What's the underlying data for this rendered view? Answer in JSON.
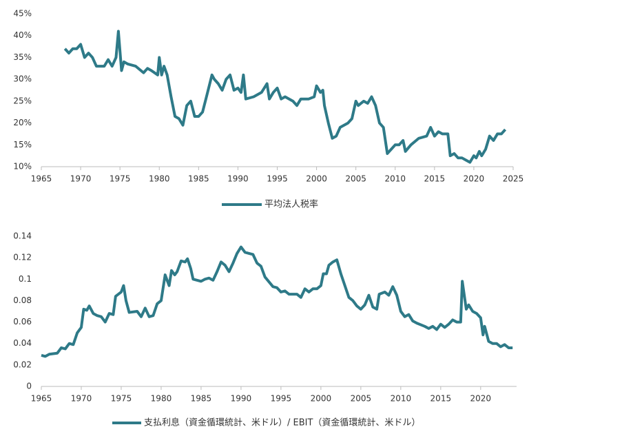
{
  "chart_data": [
    {
      "type": "line",
      "xlim": [
        1965,
        2025
      ],
      "xticks": [
        1965,
        1970,
        1975,
        1980,
        1985,
        1990,
        1995,
        2000,
        2005,
        2010,
        2015,
        2020,
        2025
      ],
      "ylim": [
        10,
        45
      ],
      "yticks": [
        {
          "value": 10,
          "label": "10%"
        },
        {
          "value": 15,
          "label": "15%"
        },
        {
          "value": 20,
          "label": "20%"
        },
        {
          "value": 25,
          "label": "25%"
        },
        {
          "value": 30,
          "label": "30%"
        },
        {
          "value": 35,
          "label": "35%"
        },
        {
          "value": 40,
          "label": "40%"
        },
        {
          "value": 45,
          "label": "45%"
        }
      ],
      "x": [
        1968,
        1968.5,
        1969,
        1969.5,
        1970,
        1970.5,
        1971,
        1971.5,
        1972,
        1973,
        1973.5,
        1974,
        1974.5,
        1974.8,
        1975.2,
        1975.5,
        1976,
        1977,
        1978,
        1978.5,
        1979,
        1979.8,
        1980,
        1980.3,
        1980.6,
        1981,
        1981.5,
        1982,
        1982.5,
        1983,
        1983.5,
        1984,
        1984.5,
        1985,
        1985.5,
        1986,
        1986.7,
        1987,
        1987.5,
        1988,
        1988.5,
        1989,
        1989.5,
        1990,
        1990.4,
        1990.7,
        1991,
        1992,
        1993,
        1993.7,
        1994,
        1994.5,
        1995,
        1995.5,
        1996,
        1997,
        1997.5,
        1998,
        1999,
        1999.7,
        2000,
        2000.5,
        2000.8,
        2001,
        2001.5,
        2002,
        2002.5,
        2003,
        2003.5,
        2004,
        2004.5,
        2005,
        2005.3,
        2006,
        2006.5,
        2007,
        2007.5,
        2008,
        2008.5,
        2009,
        2009.5,
        2010,
        2010.5,
        2011,
        2011.3,
        2012,
        2013,
        2014,
        2014.5,
        2015,
        2015.5,
        2016,
        2016.7,
        2017,
        2017.5,
        2018,
        2018.5,
        2019,
        2019.5,
        2020,
        2020.3,
        2020.7,
        2021,
        2021.5,
        2022,
        2022.5,
        2023,
        2023.5,
        2024
      ],
      "series": [
        {
          "name": "平均法人税率",
          "color": "#2e7a88",
          "values": [
            37,
            36,
            37,
            37,
            38,
            35,
            36,
            35,
            33,
            33,
            34.5,
            33,
            35,
            41,
            32,
            34,
            33.5,
            33,
            31.5,
            32.5,
            32,
            31,
            35,
            31,
            33,
            31,
            26,
            21.5,
            21,
            19.5,
            24,
            25,
            21.5,
            21.5,
            22.5,
            26,
            31,
            30,
            29,
            27.5,
            30,
            31,
            27.5,
            28,
            27,
            31,
            25.5,
            26,
            27,
            29,
            25.5,
            27,
            28,
            25.5,
            26,
            25,
            24,
            25.5,
            25.5,
            26,
            28.5,
            27,
            27.5,
            24,
            20,
            16.5,
            17,
            19,
            19.5,
            20,
            21,
            25,
            24,
            25,
            24.5,
            26,
            24,
            20,
            19,
            13,
            14,
            15,
            15,
            16,
            13.5,
            15,
            16.5,
            17,
            19,
            17,
            18,
            17.5,
            17.5,
            12.5,
            13,
            12,
            12,
            11.5,
            11,
            12.5,
            12,
            13.5,
            12.5,
            14,
            17,
            16,
            17.5,
            17.5,
            18.5
          ]
        }
      ]
    },
    {
      "type": "line",
      "xlim": [
        1965,
        2024.5
      ],
      "xticks": [
        1965,
        1970,
        1975,
        1980,
        1985,
        1990,
        1995,
        2000,
        2005,
        2010,
        2015,
        2020
      ],
      "ylim": [
        0,
        0.14
      ],
      "yticks": [
        0,
        0.02,
        0.04,
        0.06,
        0.08,
        0.1,
        0.12,
        0.14
      ],
      "x": [
        1965,
        1965.5,
        1966,
        1967,
        1967.5,
        1968,
        1968.5,
        1969,
        1969.5,
        1970,
        1970.3,
        1970.7,
        1971,
        1971.5,
        1972,
        1972.5,
        1973,
        1973.5,
        1974,
        1974.3,
        1975,
        1975.3,
        1975.6,
        1976,
        1977,
        1977.5,
        1978,
        1978.5,
        1979,
        1979.5,
        1980,
        1980.5,
        1981,
        1981.3,
        1981.7,
        1982,
        1982.5,
        1983,
        1983.3,
        1983.7,
        1984,
        1985,
        1985.5,
        1986,
        1986.5,
        1987,
        1987.5,
        1988,
        1988.5,
        1989,
        1989.5,
        1990,
        1990.5,
        1991,
        1991.5,
        1992,
        1992.5,
        1993,
        1994,
        1994.5,
        1995,
        1995.5,
        1996,
        1997,
        1997.5,
        1998,
        1998.5,
        1999,
        1999.5,
        2000,
        2000.3,
        2000.7,
        2001,
        2001.5,
        2002,
        2002.5,
        2003,
        2003.5,
        2004,
        2004.5,
        2005,
        2005.5,
        2006,
        2006.5,
        2007,
        2007.3,
        2008,
        2008.5,
        2009,
        2009.5,
        2010,
        2010.5,
        2011,
        2011.5,
        2012,
        2013,
        2013.5,
        2014,
        2014.5,
        2015,
        2015.5,
        2016,
        2016.5,
        2017,
        2017.5,
        2017.7,
        2018.2,
        2018.5,
        2019,
        2019.5,
        2020,
        2020.3,
        2020.5,
        2021,
        2021.5,
        2022,
        2022.5,
        2023,
        2023.5,
        2024
      ],
      "series": [
        {
          "name": "支払利息（資金循環統計、米ドル）/ EBIT（資金循環統計、米ドル）",
          "color": "#2e7a88",
          "values": [
            0.029,
            0.028,
            0.03,
            0.031,
            0.036,
            0.035,
            0.04,
            0.039,
            0.05,
            0.055,
            0.072,
            0.071,
            0.075,
            0.068,
            0.066,
            0.065,
            0.06,
            0.068,
            0.067,
            0.084,
            0.088,
            0.094,
            0.08,
            0.069,
            0.07,
            0.065,
            0.073,
            0.065,
            0.066,
            0.077,
            0.08,
            0.104,
            0.094,
            0.108,
            0.104,
            0.107,
            0.117,
            0.116,
            0.119,
            0.11,
            0.1,
            0.098,
            0.1,
            0.101,
            0.099,
            0.107,
            0.116,
            0.113,
            0.107,
            0.115,
            0.124,
            0.13,
            0.125,
            0.124,
            0.123,
            0.115,
            0.112,
            0.102,
            0.093,
            0.092,
            0.088,
            0.089,
            0.086,
            0.086,
            0.083,
            0.091,
            0.088,
            0.091,
            0.091,
            0.094,
            0.105,
            0.105,
            0.113,
            0.116,
            0.118,
            0.105,
            0.094,
            0.083,
            0.08,
            0.075,
            0.072,
            0.076,
            0.085,
            0.074,
            0.072,
            0.086,
            0.088,
            0.085,
            0.093,
            0.085,
            0.07,
            0.065,
            0.067,
            0.061,
            0.059,
            0.056,
            0.054,
            0.056,
            0.053,
            0.058,
            0.055,
            0.058,
            0.062,
            0.06,
            0.06,
            0.098,
            0.072,
            0.076,
            0.07,
            0.068,
            0.064,
            0.048,
            0.056,
            0.042,
            0.04,
            0.04,
            0.037,
            0.039,
            0.036,
            0.036
          ]
        }
      ]
    }
  ]
}
